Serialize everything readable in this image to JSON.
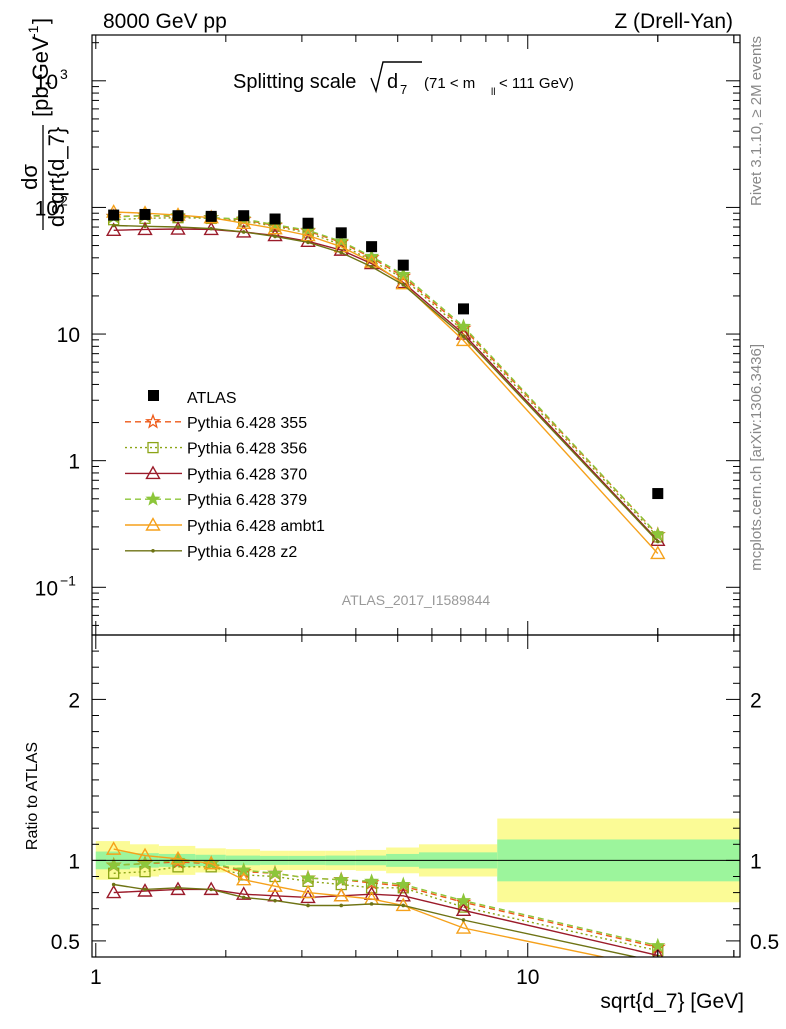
{
  "header": {
    "left": "8000 GeV pp",
    "right": "Z (Drell-Yan)"
  },
  "side": {
    "rivet": "Rivet 3.1.10, ≥ 2M events",
    "mcplots": "mcplots.cern.ch [arXiv:1306.3436]"
  },
  "chart_data": [
    {
      "type": "line",
      "title_main": "Splitting scale",
      "title_sqrt": "d",
      "title_sub": "7",
      "title_range_pre": "(71 < m",
      "title_range_sub": "ll",
      "title_range_post": " < 111 GeV)",
      "analysis_label": "ATLAS_2017_I1589844",
      "ylabel_num": "dσ",
      "ylabel_den": "dsqrt{d_7}",
      "ylabel_unit": "[pb,GeV",
      "ylabel_unit_exp": "-1",
      "ylabel_unit_close": "]",
      "xscale": "log",
      "yscale": "log",
      "xlim": [
        0.98,
        31
      ],
      "ylim": [
        0.042,
        2300
      ],
      "yticks": [
        {
          "v": 0.1,
          "base": "10",
          "exp": "−1"
        },
        {
          "v": 1,
          "base": "1",
          "exp": ""
        },
        {
          "v": 10,
          "base": "10",
          "exp": ""
        },
        {
          "v": 100,
          "base": "10",
          "exp": "2"
        },
        {
          "v": 1000,
          "base": "10",
          "exp": "3"
        }
      ],
      "legend_placement": "middle-left",
      "x": [
        1.1,
        1.3,
        1.55,
        1.85,
        2.2,
        2.6,
        3.1,
        3.7,
        4.35,
        5.15,
        7.1,
        20
      ],
      "data": {
        "name": "ATLAS",
        "values": [
          87,
          88,
          86,
          85,
          86,
          81,
          75,
          63,
          49,
          35,
          15.8,
          0.55
        ]
      },
      "series": [
        {
          "name": "Pythia 6.428 355",
          "color": "#ee5a18",
          "dash": "dash",
          "marker": "star",
          "values": [
            85,
            86,
            85,
            83,
            80,
            72,
            65,
            53,
            40,
            28.5,
            11.1,
            0.26
          ]
        },
        {
          "name": "Pythia 6.428 356",
          "color": "#8ca416",
          "dash": "dot",
          "marker": "square",
          "values": [
            80,
            82,
            83,
            82,
            78,
            71,
            63,
            51,
            38,
            27.5,
            10.6,
            0.25
          ]
        },
        {
          "name": "Pythia 6.428 370",
          "color": "#9b1b2a",
          "dash": "solid",
          "marker": "triangle",
          "values": [
            66,
            67,
            67.5,
            67,
            64,
            60,
            54,
            46,
            36,
            25.5,
            10.0,
            0.235
          ]
        },
        {
          "name": "Pythia 6.428 379",
          "color": "#8cc63a",
          "dash": "dash",
          "marker": "star",
          "values": [
            84,
            86,
            86,
            83,
            81,
            73,
            66,
            54,
            41,
            29.5,
            11.5,
            0.26
          ]
        },
        {
          "name": "Pythia 6.428 ambt1",
          "color": "#f5a11b",
          "dash": "solid",
          "marker": "triangle",
          "values": [
            92,
            90,
            87,
            83,
            75,
            68,
            60,
            49,
            37,
            25,
            8.9,
            0.185
          ]
        },
        {
          "name": "Pythia 6.428 z2",
          "color": "#6e7314",
          "dash": "solid",
          "marker": "dot",
          "values": [
            72,
            71,
            70,
            68,
            64,
            59,
            53,
            44,
            34,
            24.5,
            9.6,
            0.23
          ]
        }
      ]
    },
    {
      "type": "line",
      "ylabel": "Ratio to ATLAS",
      "xlabel": "sqrt{d_7} [GeV]",
      "xscale": "log",
      "xlim": [
        0.98,
        31
      ],
      "ylim": [
        0.4,
        2.4
      ],
      "yticks": [
        0.5,
        1,
        2
      ],
      "xticks": [
        {
          "v": 1,
          "label": "1"
        },
        {
          "v": 10,
          "label": "10"
        }
      ],
      "bands": {
        "edges": [
          1.0,
          1.2,
          1.4,
          1.7,
          2.0,
          2.4,
          2.8,
          3.4,
          4.0,
          4.7,
          5.6,
          8.5,
          31
        ],
        "inner": [
          0.055,
          0.045,
          0.04,
          0.035,
          0.03,
          0.028,
          0.028,
          0.03,
          0.03,
          0.04,
          0.05,
          0.13
        ],
        "outer": [
          0.12,
          0.1,
          0.09,
          0.075,
          0.07,
          0.06,
          0.06,
          0.06,
          0.065,
          0.08,
          0.1,
          0.26
        ]
      },
      "x": [
        1.1,
        1.3,
        1.55,
        1.85,
        2.2,
        2.6,
        3.1,
        3.7,
        4.35,
        5.15,
        7.1,
        20
      ],
      "series": [
        {
          "name": "Pythia 6.428 355",
          "values": [
            0.97,
            0.98,
            0.99,
            0.98,
            0.93,
            0.92,
            0.89,
            0.88,
            0.86,
            0.84,
            0.74,
            0.46
          ]
        },
        {
          "name": "Pythia 6.428 356",
          "values": [
            0.92,
            0.93,
            0.96,
            0.96,
            0.91,
            0.9,
            0.87,
            0.85,
            0.83,
            0.83,
            0.71,
            0.44
          ]
        },
        {
          "name": "Pythia 6.428 370",
          "values": [
            0.8,
            0.81,
            0.82,
            0.82,
            0.79,
            0.78,
            0.77,
            0.78,
            0.79,
            0.78,
            0.69,
            0.41
          ]
        },
        {
          "name": "Pythia 6.428 379",
          "values": [
            0.97,
            0.98,
            1.0,
            0.98,
            0.94,
            0.92,
            0.89,
            0.88,
            0.87,
            0.85,
            0.75,
            0.47
          ]
        },
        {
          "name": "Pythia 6.428 ambt1",
          "values": [
            1.07,
            1.03,
            1.01,
            0.98,
            0.88,
            0.84,
            0.8,
            0.78,
            0.76,
            0.72,
            0.58,
            0.33
          ]
        },
        {
          "name": "Pythia 6.428 z2",
          "values": [
            0.85,
            0.82,
            0.83,
            0.82,
            0.77,
            0.75,
            0.72,
            0.72,
            0.73,
            0.72,
            0.63,
            0.37
          ]
        }
      ]
    }
  ]
}
